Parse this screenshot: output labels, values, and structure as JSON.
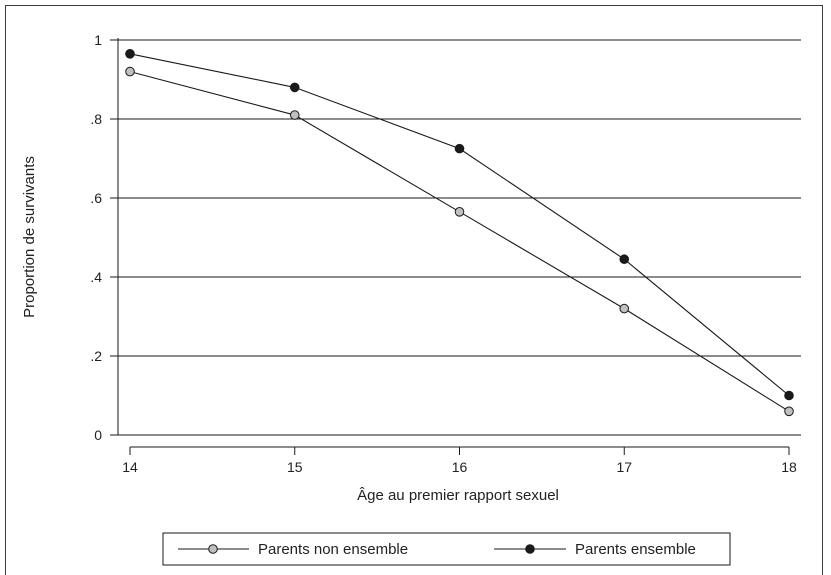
{
  "chart_data": {
    "type": "line",
    "title": "",
    "xlabel": "Âge au premier rapport sexuel",
    "ylabel": "Proportion de survivants",
    "x": [
      14,
      15,
      16,
      17,
      18
    ],
    "xticks": [
      "14",
      "15",
      "16",
      "17",
      "18"
    ],
    "xlim": [
      14,
      18
    ],
    "ylim": [
      0,
      1
    ],
    "yticks": [
      {
        "value": 0,
        "label": "0"
      },
      {
        "value": 0.2,
        "label": ".2"
      },
      {
        "value": 0.4,
        "label": ".4"
      },
      {
        "value": 0.6,
        "label": ".6"
      },
      {
        "value": 0.8,
        "label": ".8"
      },
      {
        "value": 1,
        "label": "1"
      }
    ],
    "grid": true,
    "legend_position": "bottom",
    "series": [
      {
        "name": "Parents non ensemble",
        "values": [
          0.92,
          0.81,
          0.565,
          0.32,
          0.06
        ],
        "marker_color": "#c0c0c0"
      },
      {
        "name": "Parents ensemble",
        "values": [
          0.965,
          0.88,
          0.725,
          0.445,
          0.1
        ],
        "marker_color": "#1a1a1a"
      }
    ]
  }
}
